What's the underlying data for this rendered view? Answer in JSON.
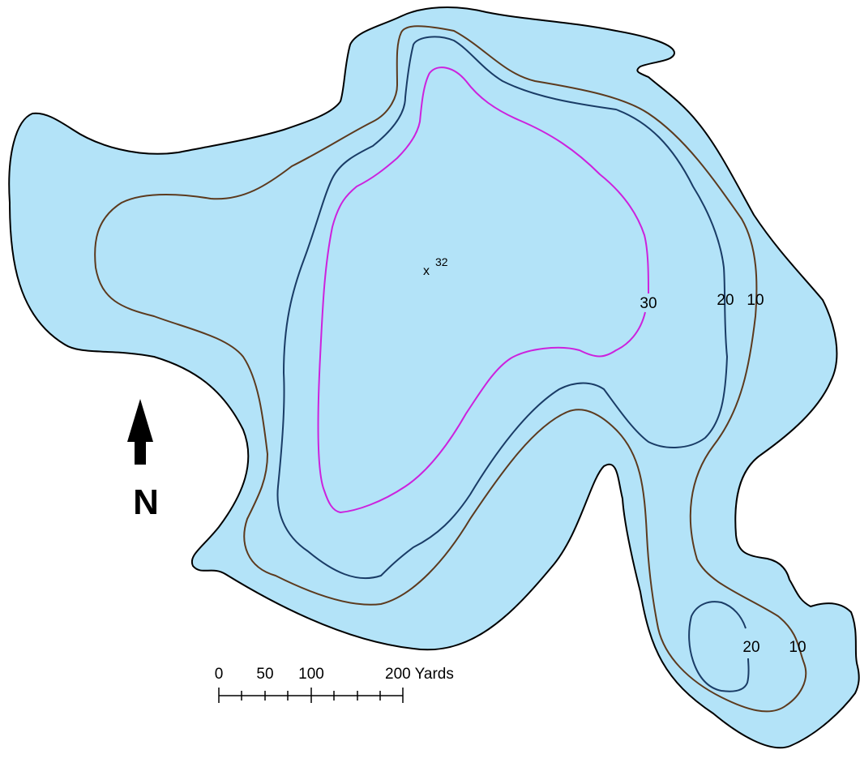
{
  "map": {
    "colors": {
      "water": "#b3e3f8",
      "shoreline": "#000000",
      "contour_10": "#5c3a1e",
      "contour_20": "#1a3c66",
      "contour_30": "#cc22dd"
    },
    "contour_labels": [
      {
        "id": "main-10",
        "text": "10"
      },
      {
        "id": "main-20",
        "text": "20"
      },
      {
        "id": "main-30",
        "text": "30"
      },
      {
        "id": "south-20",
        "text": "20"
      },
      {
        "id": "south-10",
        "text": "10"
      }
    ],
    "deepest_point": {
      "marker": "x",
      "depth": "32"
    },
    "north_arrow": {
      "label": "N",
      "icon": "north-arrow-icon"
    },
    "scale_bar": {
      "ticks": [
        "0",
        "50",
        "100",
        "200 Yards"
      ]
    }
  }
}
